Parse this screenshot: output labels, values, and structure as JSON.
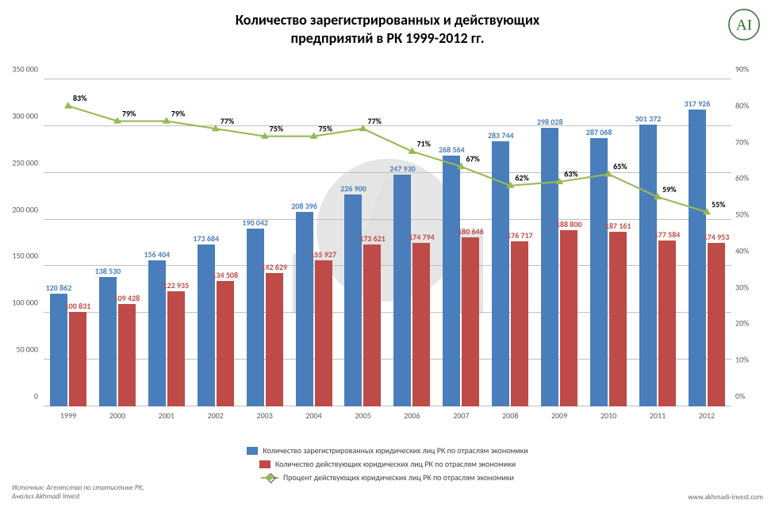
{
  "title_line1": "Количество зарегистрированных и действующих",
  "title_line2": "предприятий в РК 1999-2012 гг.",
  "title_fontsize": 18,
  "logo_text": "AI",
  "logo_stroke": "#2e6b2e",
  "chart": {
    "type": "bar+line",
    "categories": [
      "1999",
      "2000",
      "2001",
      "2002",
      "2003",
      "2004",
      "2005",
      "2006",
      "2007",
      "2008",
      "2009",
      "2010",
      "2011",
      "2012"
    ],
    "bar_series": [
      {
        "name": "Количество зарегистрированных юридических лиц РК по отраслям экономики",
        "color": "#4a7ebb",
        "values": [
          120862,
          138530,
          156404,
          173684,
          190042,
          208396,
          226900,
          247930,
          268564,
          283744,
          298028,
          287068,
          301372,
          317926
        ],
        "labels": [
          "120 862",
          "138 530",
          "156 404",
          "173 684",
          "190 042",
          "208 396",
          "226 900",
          "247 930",
          "268 564",
          "283 744",
          "298 028",
          "287 068",
          "301 372",
          "317 926"
        ]
      },
      {
        "name": "Количество действующих юридических лиц РК по отраслям экономики",
        "color": "#be4b48",
        "values": [
          100831,
          109428,
          122935,
          134508,
          142629,
          155927,
          173621,
          174794,
          180646,
          176717,
          188800,
          187161,
          177584,
          174953
        ],
        "labels": [
          "100 831",
          "109 428",
          "122 935",
          "134 508",
          "142 629",
          "155 927",
          "173 621",
          "174 794",
          "180 646",
          "176 717",
          "188 800",
          "187 161",
          "177 584",
          "174 953"
        ]
      }
    ],
    "line_series": {
      "name": "Процент действующих юридических лиц РК по отраслям экономики",
      "color": "#98b954",
      "marker": "triangle",
      "values": [
        83,
        79,
        79,
        77,
        75,
        75,
        77,
        71,
        67,
        62,
        63,
        65,
        59,
        55
      ],
      "labels": [
        "83%",
        "79%",
        "79%",
        "77%",
        "75%",
        "75%",
        "77%",
        "71%",
        "67%",
        "62%",
        "63%",
        "65%",
        "59%",
        "55%"
      ]
    },
    "y_left": {
      "min": 0,
      "max": 350000,
      "step": 50000,
      "labels": [
        "0",
        "50 000",
        "100 000",
        "150 000",
        "200 000",
        "250 000",
        "300 000",
        "350 000"
      ]
    },
    "y_right": {
      "min": 0,
      "max": 90,
      "step": 10,
      "labels": [
        "0%",
        "10%",
        "20%",
        "30%",
        "40%",
        "50%",
        "60%",
        "70%",
        "80%",
        "90%"
      ]
    },
    "grid_color": "#bfbfbf",
    "background": "#ffffff"
  },
  "footer_source1": "Источник: Агентство по статистике РК,",
  "footer_source2": "Анализ Akhmadi Invest",
  "footer_url": "www.akhmadi-invest.com"
}
